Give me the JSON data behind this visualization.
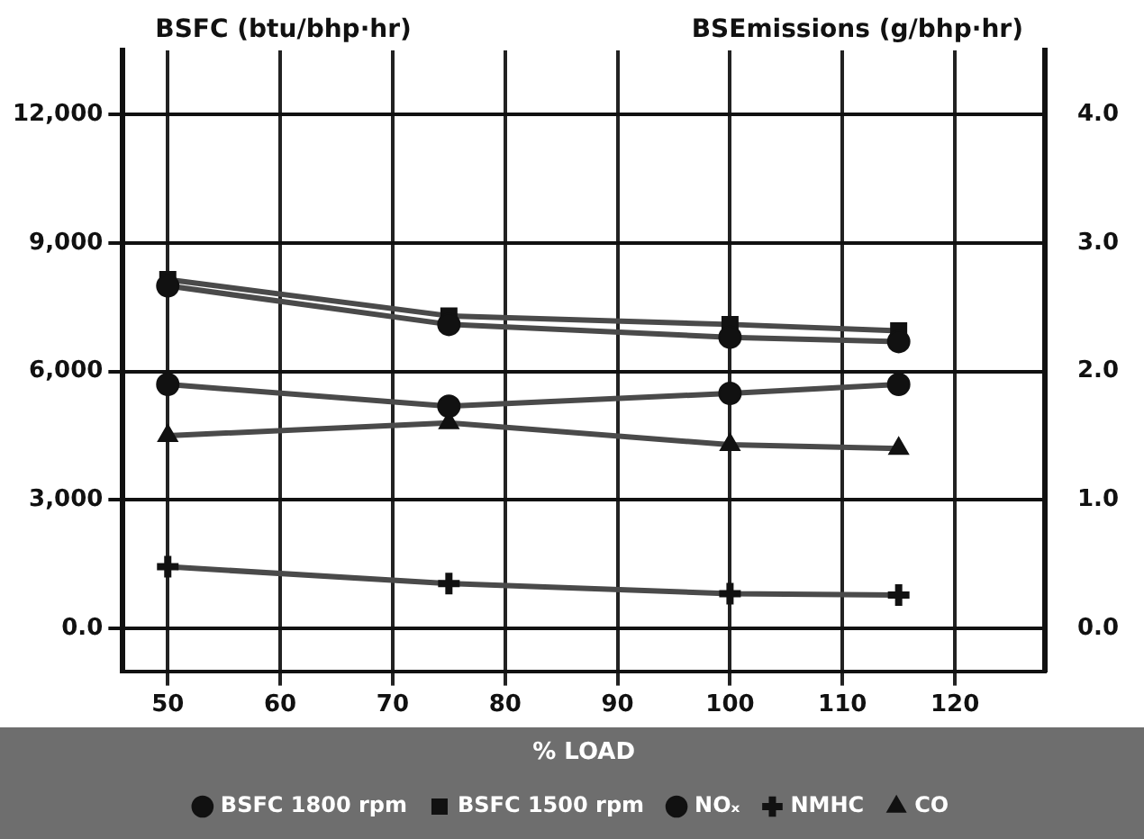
{
  "chart_data": {
    "type": "line",
    "xlabel": "% LOAD",
    "ylabel": "BSFC (btu/bhp·hr)",
    "y2label": "BSEmissions (g/bhp·hr)",
    "x": [
      50,
      75,
      100,
      115
    ],
    "series": [
      {
        "name": "BSFC 1800 rpm",
        "color": "#4a4a4a",
        "marker": "circle",
        "values": [
          8000,
          7100,
          6800,
          6700
        ]
      },
      {
        "name": "BSFC 1500 rpm",
        "color": "#4a4a4a",
        "marker": "square",
        "values": [
          8150,
          7300,
          7100,
          6950
        ]
      },
      {
        "name": "NOₓ",
        "color": "#4a4a4a",
        "marker": "circle",
        "axis": "y2",
        "values": [
          1.9,
          1.73,
          1.83,
          1.9
        ]
      },
      {
        "name": "NMHC",
        "color": "#4a4a4a",
        "marker": "cross",
        "axis": "y2",
        "values": [
          0.48,
          0.35,
          0.27,
          0.26
        ]
      },
      {
        "name": "CO",
        "color": "#4a4a4a",
        "marker": "triangle",
        "axis": "y2",
        "values": [
          1.5,
          1.6,
          1.43,
          1.4
        ]
      }
    ],
    "xlim": [
      46,
      128
    ],
    "xticks": [
      50,
      60,
      70,
      80,
      90,
      100,
      110,
      120
    ],
    "ylim": [
      -1000,
      13500
    ],
    "yticks": [
      {
        "value": 0,
        "label": "0.0"
      },
      {
        "value": 3000,
        "label": "3,000"
      },
      {
        "value": 6000,
        "label": "6,000"
      },
      {
        "value": 9000,
        "label": "9,000"
      },
      {
        "value": 12000,
        "label": "12,000"
      }
    ],
    "y2lim": [
      -0.333,
      4.5
    ],
    "y2ticks": [
      {
        "value": 0,
        "label": "0.0"
      },
      {
        "value": 1,
        "label": "1.0"
      },
      {
        "value": 2,
        "label": "2.0"
      },
      {
        "value": 3,
        "label": "3.0"
      },
      {
        "value": 4,
        "label": "4.0"
      }
    ],
    "grid": true,
    "legend": "bottom",
    "line_style": "solid"
  }
}
